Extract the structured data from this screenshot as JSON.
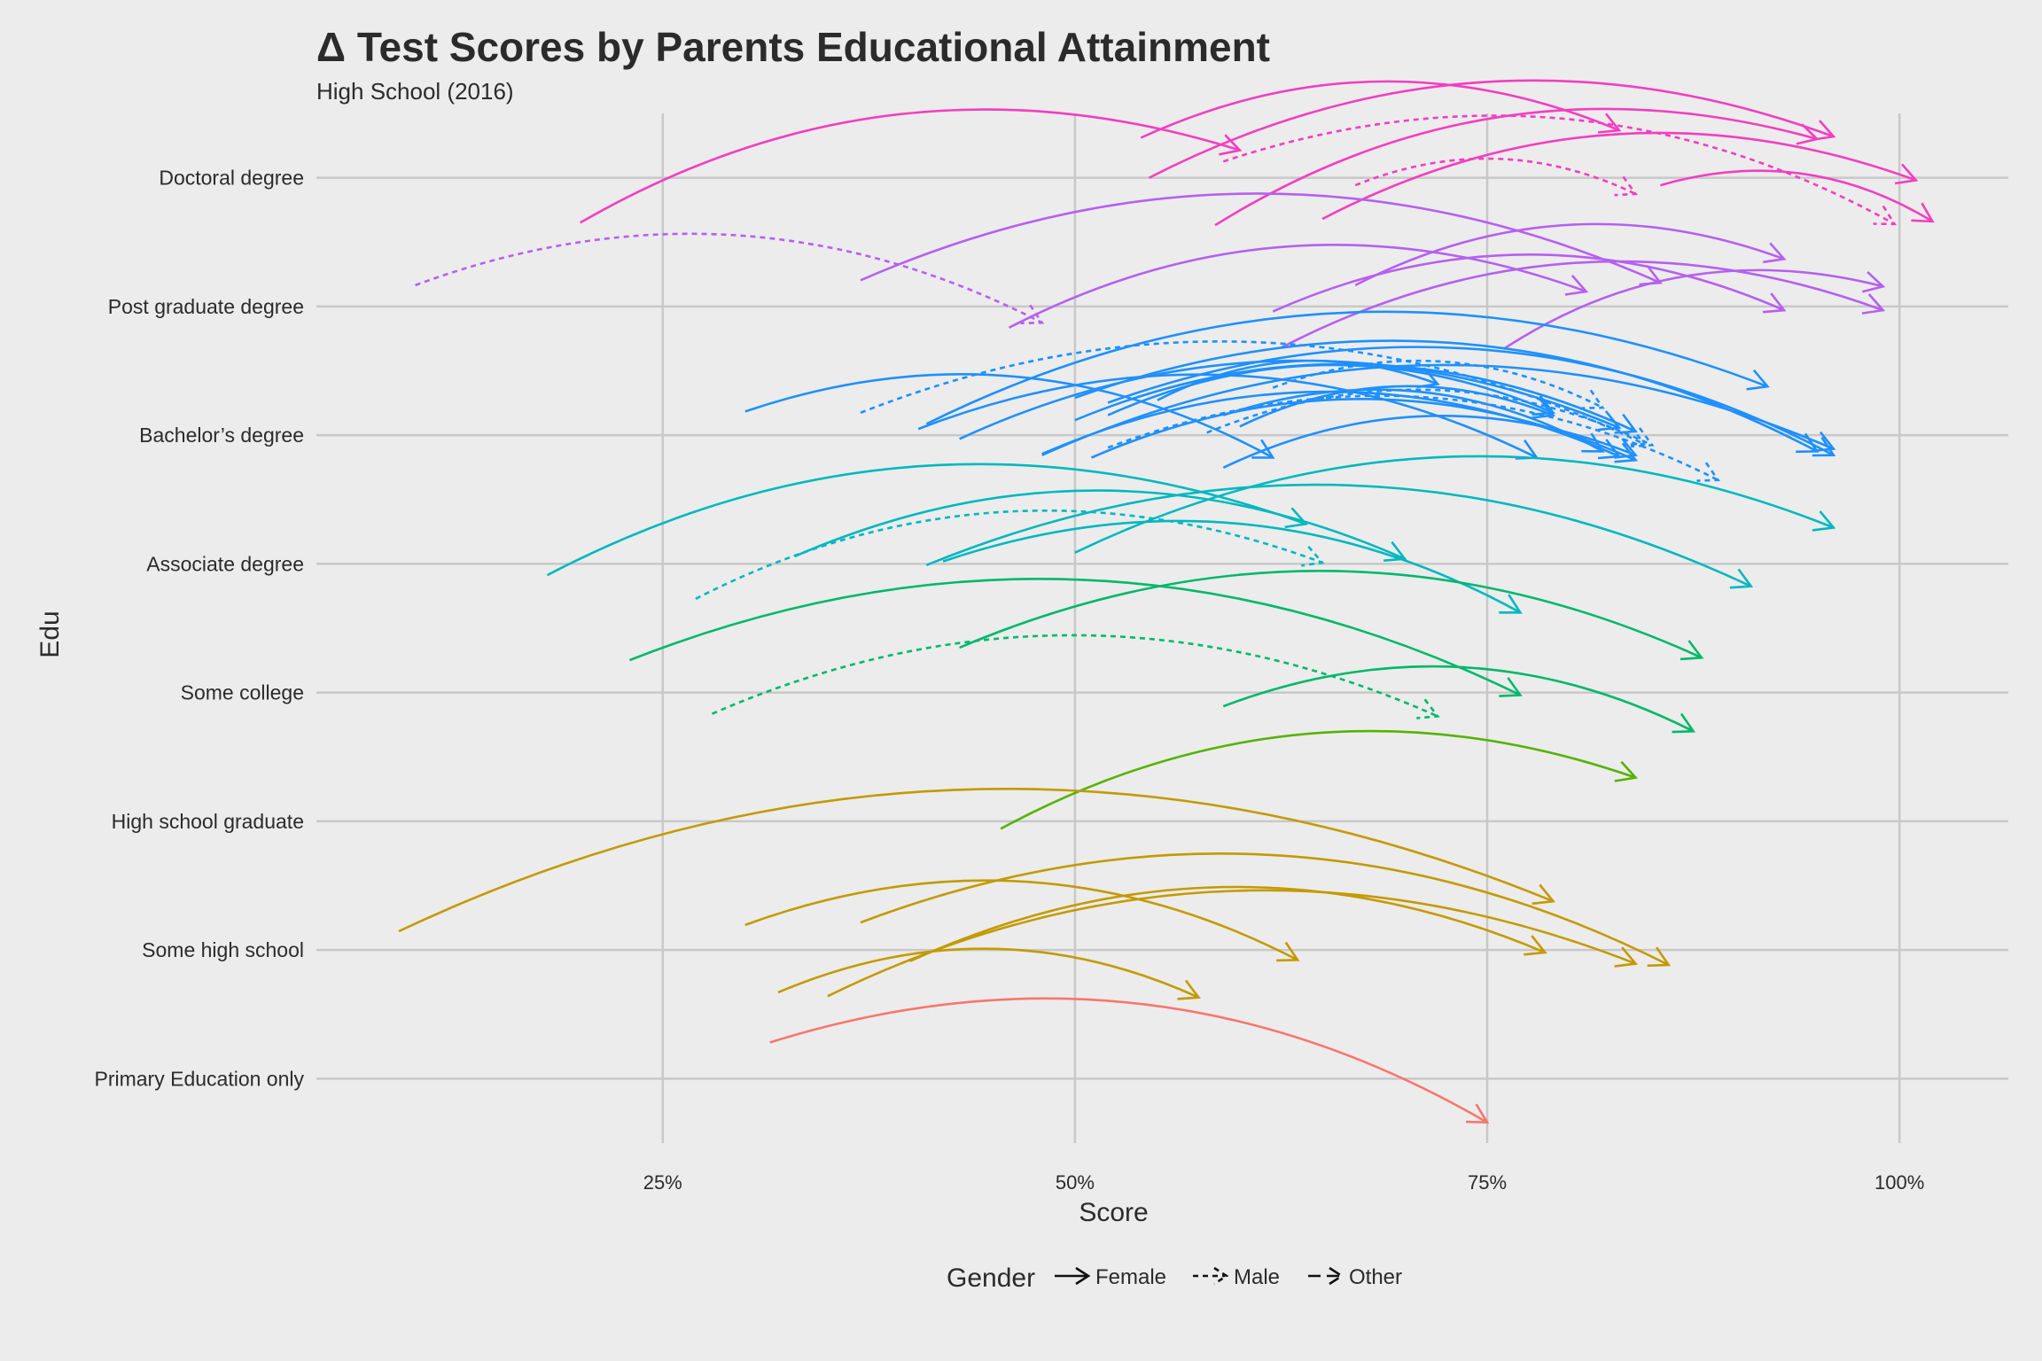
{
  "chart_data": {
    "type": "curved-arrow",
    "title": "Δ Test Scores by Parents Educational Attainment",
    "subtitle": "High School (2016)",
    "xlabel": "Score",
    "ylabel": "Edu",
    "xlim": [
      0.04,
      1.066
    ],
    "x_ticks": [
      0.25,
      0.5,
      0.75,
      1.0
    ],
    "x_tick_labels": [
      "25%",
      "50%",
      "75%",
      "100%"
    ],
    "categories": [
      "Primary Education only",
      "Some high school",
      "High school graduate",
      "Some college",
      "Associate degree",
      "Bachelor’s degree",
      "Post graduate degree",
      "Doctoral degree"
    ],
    "colors": {
      "Primary Education only": "#F8766D",
      "Some high school": "#C49A00",
      "High school graduate": "#53B400",
      "Some college": "#00B86B",
      "Associate degree": "#00B8BF",
      "Bachelor’s degree": "#1E90FF",
      "Post graduate degree": "#B660F0",
      "Doctoral degree": "#F23FC0"
    },
    "grid": true,
    "legend": {
      "title": "Gender",
      "position": "bottom",
      "items": [
        {
          "label": "Female",
          "linetype": "solid"
        },
        {
          "label": "Male",
          "linetype": "dotted"
        },
        {
          "label": "Other",
          "linetype": "dashed"
        }
      ]
    },
    "arrows": [
      {
        "edu": "Doctoral degree",
        "gender": "Female",
        "x0": 0.54,
        "y0": 0.32,
        "x1": 0.83,
        "y1": 0.38
      },
      {
        "edu": "Doctoral degree",
        "gender": "Female",
        "x0": 0.545,
        "y0": 0.0,
        "x1": 0.96,
        "y1": 0.33
      },
      {
        "edu": "Doctoral degree",
        "gender": "Female",
        "x0": 0.2,
        "y0": -0.36,
        "x1": 0.6,
        "y1": 0.22
      },
      {
        "edu": "Doctoral degree",
        "gender": "Female",
        "x0": 0.585,
        "y0": -0.38,
        "x1": 0.95,
        "y1": 0.31
      },
      {
        "edu": "Doctoral degree",
        "gender": "Female",
        "x0": 0.65,
        "y0": -0.33,
        "x1": 1.01,
        "y1": -0.02
      },
      {
        "edu": "Doctoral degree",
        "gender": "Female",
        "x0": 0.855,
        "y0": -0.06,
        "x1": 1.02,
        "y1": -0.35
      },
      {
        "edu": "Doctoral degree",
        "gender": "Male",
        "x0": 0.59,
        "y0": 0.13,
        "x1": 0.997,
        "y1": -0.37
      },
      {
        "edu": "Doctoral degree",
        "gender": "Male",
        "x0": 0.67,
        "y0": -0.06,
        "x1": 0.84,
        "y1": -0.13
      },
      {
        "edu": "Post graduate degree",
        "gender": "Male",
        "x0": 0.1,
        "y0": 0.17,
        "x1": 0.48,
        "y1": -0.13
      },
      {
        "edu": "Post graduate degree",
        "gender": "Female",
        "x0": 0.37,
        "y0": 0.21,
        "x1": 0.855,
        "y1": 0.19
      },
      {
        "edu": "Post graduate degree",
        "gender": "Female",
        "x0": 0.67,
        "y0": 0.17,
        "x1": 0.93,
        "y1": 0.38
      },
      {
        "edu": "Post graduate degree",
        "gender": "Female",
        "x0": 0.46,
        "y0": -0.17,
        "x1": 0.81,
        "y1": 0.12
      },
      {
        "edu": "Post graduate degree",
        "gender": "Female",
        "x0": 0.62,
        "y0": -0.04,
        "x1": 0.93,
        "y1": -0.03
      },
      {
        "edu": "Post graduate degree",
        "gender": "Female",
        "x0": 0.625,
        "y0": -0.33,
        "x1": 0.99,
        "y1": -0.03
      },
      {
        "edu": "Post graduate degree",
        "gender": "Female",
        "x0": 0.76,
        "y0": -0.34,
        "x1": 0.99,
        "y1": 0.16
      },
      {
        "edu": "Bachelor’s degree",
        "gender": "Female",
        "x0": 0.3,
        "y0": 0.19,
        "x1": 0.62,
        "y1": -0.18
      },
      {
        "edu": "Bachelor’s degree",
        "gender": "Female",
        "x0": 0.41,
        "y0": 0.09,
        "x1": 0.92,
        "y1": 0.39
      },
      {
        "edu": "Bachelor’s degree",
        "gender": "Female",
        "x0": 0.405,
        "y0": 0.05,
        "x1": 0.78,
        "y1": -0.18
      },
      {
        "edu": "Bachelor’s degree",
        "gender": "Female",
        "x0": 0.43,
        "y0": -0.03,
        "x1": 0.83,
        "y1": 0.06
      },
      {
        "edu": "Bachelor’s degree",
        "gender": "Female",
        "x0": 0.48,
        "y0": -0.16,
        "x1": 0.96,
        "y1": -0.11
      },
      {
        "edu": "Bachelor’s degree",
        "gender": "Female",
        "x0": 0.48,
        "y0": -0.15,
        "x1": 0.83,
        "y1": -0.17
      },
      {
        "edu": "Bachelor’s degree",
        "gender": "Female",
        "x0": 0.51,
        "y0": -0.18,
        "x1": 0.84,
        "y1": -0.2
      },
      {
        "edu": "Bachelor’s degree",
        "gender": "Female",
        "x0": 0.59,
        "y0": -0.26,
        "x1": 0.84,
        "y1": -0.16
      },
      {
        "edu": "Bachelor’s degree",
        "gender": "Female",
        "x0": 0.5,
        "y0": 0.12,
        "x1": 0.84,
        "y1": 0.03
      },
      {
        "edu": "Bachelor’s degree",
        "gender": "Female",
        "x0": 0.5,
        "y0": 0.3,
        "x1": 0.95,
        "y1": -0.13
      },
      {
        "edu": "Bachelor’s degree",
        "gender": "Female",
        "x0": 0.52,
        "y0": 0.26,
        "x1": 0.96,
        "y1": -0.16
      },
      {
        "edu": "Bachelor’s degree",
        "gender": "Female",
        "x0": 0.59,
        "y0": 0.16,
        "x1": 0.82,
        "y1": -0.13
      },
      {
        "edu": "Bachelor’s degree",
        "gender": "Female",
        "x0": 0.6,
        "y0": 0.07,
        "x1": 0.79,
        "y1": 0.16
      },
      {
        "edu": "Bachelor’s degree",
        "gender": "Female",
        "x0": 0.55,
        "y0": 0.28,
        "x1": 0.72,
        "y1": 0.41
      },
      {
        "edu": "Bachelor’s degree",
        "gender": "Female",
        "x0": 0.52,
        "y0": 0.16,
        "x1": 0.79,
        "y1": 0.18
      },
      {
        "edu": "Bachelor’s degree",
        "gender": "Male",
        "x0": 0.37,
        "y0": 0.18,
        "x1": 0.845,
        "y1": -0.07
      },
      {
        "edu": "Bachelor’s degree",
        "gender": "Male",
        "x0": 0.52,
        "y0": -0.1,
        "x1": 0.89,
        "y1": -0.36
      },
      {
        "edu": "Bachelor’s degree",
        "gender": "Male",
        "x0": 0.58,
        "y0": 0.02,
        "x1": 0.85,
        "y1": -0.08
      },
      {
        "edu": "Bachelor’s degree",
        "gender": "Male",
        "x0": 0.62,
        "y0": 0.38,
        "x1": 0.82,
        "y1": 0.22
      },
      {
        "edu": "Associate degree",
        "gender": "Female",
        "x0": 0.18,
        "y0": -0.09,
        "x1": 0.64,
        "y1": 0.32
      },
      {
        "edu": "Associate degree",
        "gender": "Female",
        "x0": 0.33,
        "y0": 0.06,
        "x1": 0.7,
        "y1": 0.04
      },
      {
        "edu": "Associate degree",
        "gender": "Female",
        "x0": 0.41,
        "y0": -0.01,
        "x1": 0.91,
        "y1": -0.18
      },
      {
        "edu": "Associate degree",
        "gender": "Female",
        "x0": 0.42,
        "y0": 0.02,
        "x1": 0.77,
        "y1": -0.39
      },
      {
        "edu": "Associate degree",
        "gender": "Female",
        "x0": 0.5,
        "y0": 0.09,
        "x1": 0.96,
        "y1": 0.29
      },
      {
        "edu": "Associate degree",
        "gender": "Male",
        "x0": 0.27,
        "y0": -0.28,
        "x1": 0.65,
        "y1": 0.01
      },
      {
        "edu": "Some college",
        "gender": "Female",
        "x0": 0.23,
        "y0": 0.26,
        "x1": 0.77,
        "y1": -0.02
      },
      {
        "edu": "Some college",
        "gender": "Female",
        "x0": 0.43,
        "y0": 0.36,
        "x1": 0.88,
        "y1": 0.28
      },
      {
        "edu": "Some college",
        "gender": "Female",
        "x0": 0.59,
        "y0": -0.11,
        "x1": 0.875,
        "y1": -0.31
      },
      {
        "edu": "Some college",
        "gender": "Male",
        "x0": 0.28,
        "y0": -0.17,
        "x1": 0.72,
        "y1": -0.19
      },
      {
        "edu": "High school graduate",
        "gender": "Female",
        "x0": 0.455,
        "y0": -0.06,
        "x1": 0.84,
        "y1": 0.35
      },
      {
        "edu": "Some high school",
        "gender": "Female",
        "x0": 0.09,
        "y0": 0.15,
        "x1": 0.79,
        "y1": 0.39
      },
      {
        "edu": "Some high school",
        "gender": "Female",
        "x0": 0.3,
        "y0": 0.2,
        "x1": 0.635,
        "y1": -0.08
      },
      {
        "edu": "Some high school",
        "gender": "Female",
        "x0": 0.4,
        "y0": -0.09,
        "x1": 0.785,
        "y1": -0.02
      },
      {
        "edu": "Some high school",
        "gender": "Female",
        "x0": 0.32,
        "y0": -0.34,
        "x1": 0.575,
        "y1": -0.38
      },
      {
        "edu": "Some high school",
        "gender": "Female",
        "x0": 0.35,
        "y0": -0.37,
        "x1": 0.84,
        "y1": -0.11
      },
      {
        "edu": "Some high school",
        "gender": "Female",
        "x0": 0.37,
        "y0": 0.22,
        "x1": 0.86,
        "y1": -0.12
      },
      {
        "edu": "Primary Education only",
        "gender": "Female",
        "x0": 0.315,
        "y0": 0.29,
        "x1": 0.75,
        "y1": -0.35
      }
    ]
  }
}
